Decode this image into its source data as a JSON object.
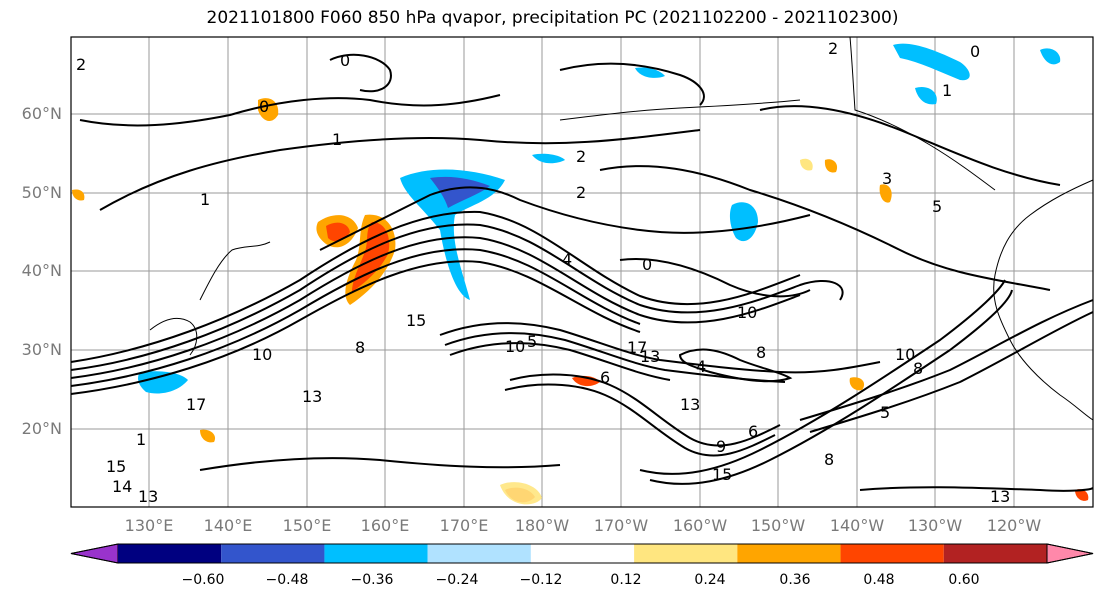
{
  "title": "2021101800 F060 850 hPa qvapor, precipitation PC (2021102200 - 2021102300)",
  "lat_labels": [
    "60°N",
    "50°N",
    "40°N",
    "30°N",
    "20°N"
  ],
  "lon_labels": [
    "130°E",
    "140°E",
    "150°E",
    "160°E",
    "170°E",
    "180°W",
    "170°W",
    "160°W",
    "150°W",
    "140°W",
    "130°W",
    "120°W"
  ],
  "colorbar": {
    "tick_labels": [
      "−0.60",
      "−0.48",
      "−0.36",
      "−0.24",
      "−0.12",
      "0.12",
      "0.24",
      "0.36",
      "0.48",
      "0.60"
    ],
    "colors": [
      "#9933cc",
      "#000080",
      "#3355cc",
      "#00bfff",
      "#b0e2ff",
      "#ffffff",
      "#ffe680",
      "#ffa500",
      "#ff4500",
      "#b22222",
      "#ff88aa"
    ]
  },
  "contour_labels": [
    "0",
    "1",
    "2",
    "2",
    "1",
    "3",
    "0",
    "1",
    "0",
    "2",
    "2",
    "4",
    "5",
    "0",
    "10",
    "10",
    "17",
    "13",
    "15",
    "8",
    "4",
    "6",
    "10",
    "8",
    "5",
    "13",
    "15",
    "17",
    "13",
    "15",
    "6",
    "8",
    "9",
    "13",
    "10",
    "8",
    "5",
    "13",
    "14",
    "1"
  ],
  "map_features": {
    "projection": "cylindrical",
    "gridlines": true,
    "coastlines": true,
    "field_contoured": "850 hPa water vapor mixing ratio (g/kg)",
    "field_shaded": "precipitation PC"
  }
}
